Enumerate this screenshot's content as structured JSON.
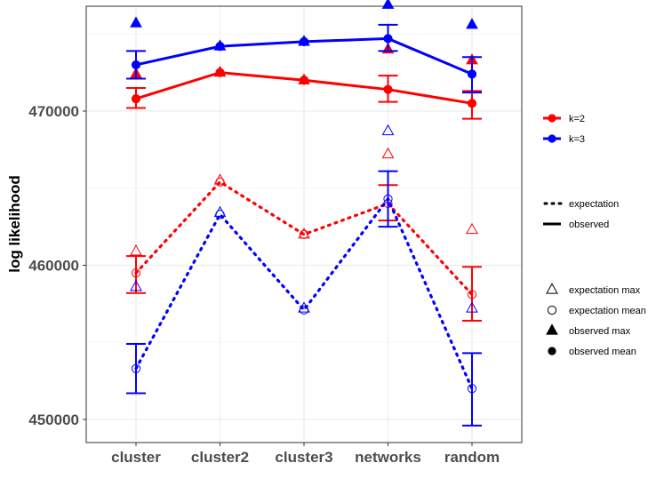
{
  "chart_data": {
    "type": "line",
    "title": "",
    "xlabel": "",
    "ylabel": "log likelihood",
    "categories": [
      "cluster",
      "cluster2",
      "cluster3",
      "networks",
      "random"
    ],
    "ylim": [
      448500,
      476800
    ],
    "yticks": [
      450000,
      460000,
      470000
    ],
    "ytick_labels": [
      "450000",
      "460000",
      "470000"
    ],
    "grid": true,
    "legend_position": "right",
    "colors": {
      "k2": "#ff0000",
      "k3": "#0000ff"
    },
    "series": [
      {
        "k": "k=2",
        "color": "#ff0000",
        "kind": "observed",
        "mean": [
          470800,
          472500,
          472000,
          471400,
          470500
        ],
        "max": [
          472400,
          472500,
          472000,
          474000,
          473300
        ],
        "err_low": [
          470200,
          null,
          null,
          470600,
          469500
        ],
        "err_high": [
          471500,
          null,
          null,
          472300,
          471300
        ]
      },
      {
        "k": "k=3",
        "color": "#0000ff",
        "kind": "observed",
        "mean": [
          473000,
          474200,
          474500,
          474700,
          472400
        ],
        "max": [
          475700,
          474200,
          474500,
          476900,
          475600
        ],
        "err_low": [
          472100,
          null,
          null,
          473900,
          471200
        ],
        "err_high": [
          473900,
          null,
          null,
          475600,
          473500
        ]
      },
      {
        "k": "k=2",
        "color": "#ff0000",
        "kind": "expectation",
        "mean": [
          459500,
          465400,
          462000,
          464000,
          458100
        ],
        "max": [
          460900,
          465500,
          462000,
          467200,
          462300
        ],
        "err_low": [
          458200,
          null,
          null,
          462900,
          456400
        ],
        "err_high": [
          460600,
          null,
          null,
          465200,
          459900
        ]
      },
      {
        "k": "k=3",
        "color": "#0000ff",
        "kind": "expectation",
        "mean": [
          453300,
          463300,
          457100,
          464300,
          452000
        ],
        "max": [
          458600,
          463400,
          457200,
          468700,
          457200
        ],
        "err_low": [
          451700,
          null,
          null,
          462500,
          449600
        ],
        "err_high": [
          454900,
          null,
          null,
          466100,
          454300
        ]
      }
    ],
    "legend": {
      "k_entries": [
        {
          "label": "k=2",
          "color": "#ff0000"
        },
        {
          "label": "k=3",
          "color": "#0000ff"
        }
      ],
      "line_entries": [
        {
          "label": "expectation",
          "style": "dotted"
        },
        {
          "label": "observed",
          "style": "solid"
        }
      ],
      "shape_entries": [
        {
          "label": "expectation max",
          "shape": "open-triangle"
        },
        {
          "label": "expectation mean",
          "shape": "open-circle"
        },
        {
          "label": "observed max",
          "shape": "filled-triangle"
        },
        {
          "label": "observed mean",
          "shape": "filled-circle"
        }
      ]
    }
  }
}
